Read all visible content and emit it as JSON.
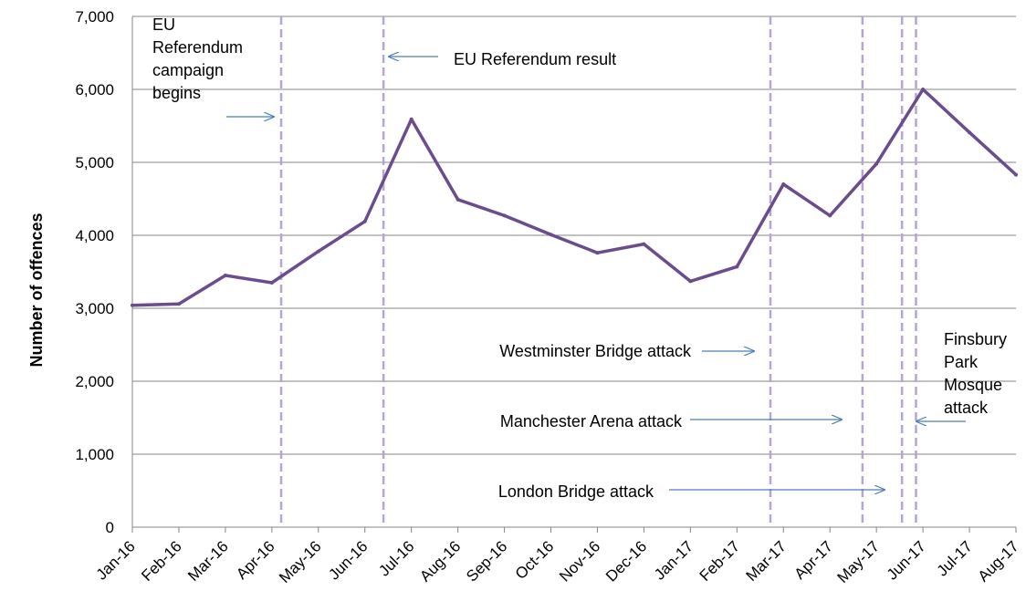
{
  "chart_data": {
    "type": "line",
    "title": "",
    "xlabel": "",
    "ylabel": "Number of offences",
    "categories": [
      "Jan-16",
      "Feb-16",
      "Mar-16",
      "Apr-16",
      "May-16",
      "Jun-16",
      "Jul-16",
      "Aug-16",
      "Sep-16",
      "Oct-16",
      "Nov-16",
      "Dec-16",
      "Jan-17",
      "Feb-17",
      "Mar-17",
      "Apr-17",
      "May-17",
      "Jun-17",
      "Jul-17",
      "Aug-17"
    ],
    "series": [
      {
        "values": [
          3040,
          3060,
          3450,
          3350,
          3780,
          4190,
          5590,
          4490,
          4270,
          4010,
          3760,
          3880,
          3370,
          3570,
          4700,
          4270,
          4980,
          6000,
          5410,
          4830
        ]
      }
    ],
    "ylim": [
      0,
      7000
    ],
    "yticks": [
      0,
      1000,
      2000,
      3000,
      4000,
      5000,
      6000,
      7000
    ],
    "ytick_labels": [
      "0",
      "1,000",
      "2,000",
      "3,000",
      "4,000",
      "5,000",
      "6,000",
      "7,000"
    ],
    "grid": true,
    "line_color": "#6B4C8C",
    "event_line_color": "#B6A4D4",
    "arrow_color": "#4A7EBB",
    "events": [
      {
        "x": 3.2,
        "label_lines": [
          "EU",
          "Referendum",
          "campaign",
          "begins"
        ],
        "arrow": "right"
      },
      {
        "x": 5.4,
        "label_lines": [
          "EU Referendum result"
        ],
        "arrow": "left"
      },
      {
        "x": 13.72,
        "label_lines": [
          "Westminster Bridge attack"
        ],
        "arrow": "right"
      },
      {
        "x": 15.7,
        "label_lines": [
          "Manchester Arena attack"
        ],
        "arrow": "right"
      },
      {
        "x": 16.55,
        "label_lines": [
          "London Bridge attack"
        ],
        "arrow": "right"
      },
      {
        "x": 16.85,
        "label_lines": [
          "Finsbury",
          "Park",
          "Mosque",
          "attack"
        ],
        "arrow": "left"
      }
    ]
  }
}
